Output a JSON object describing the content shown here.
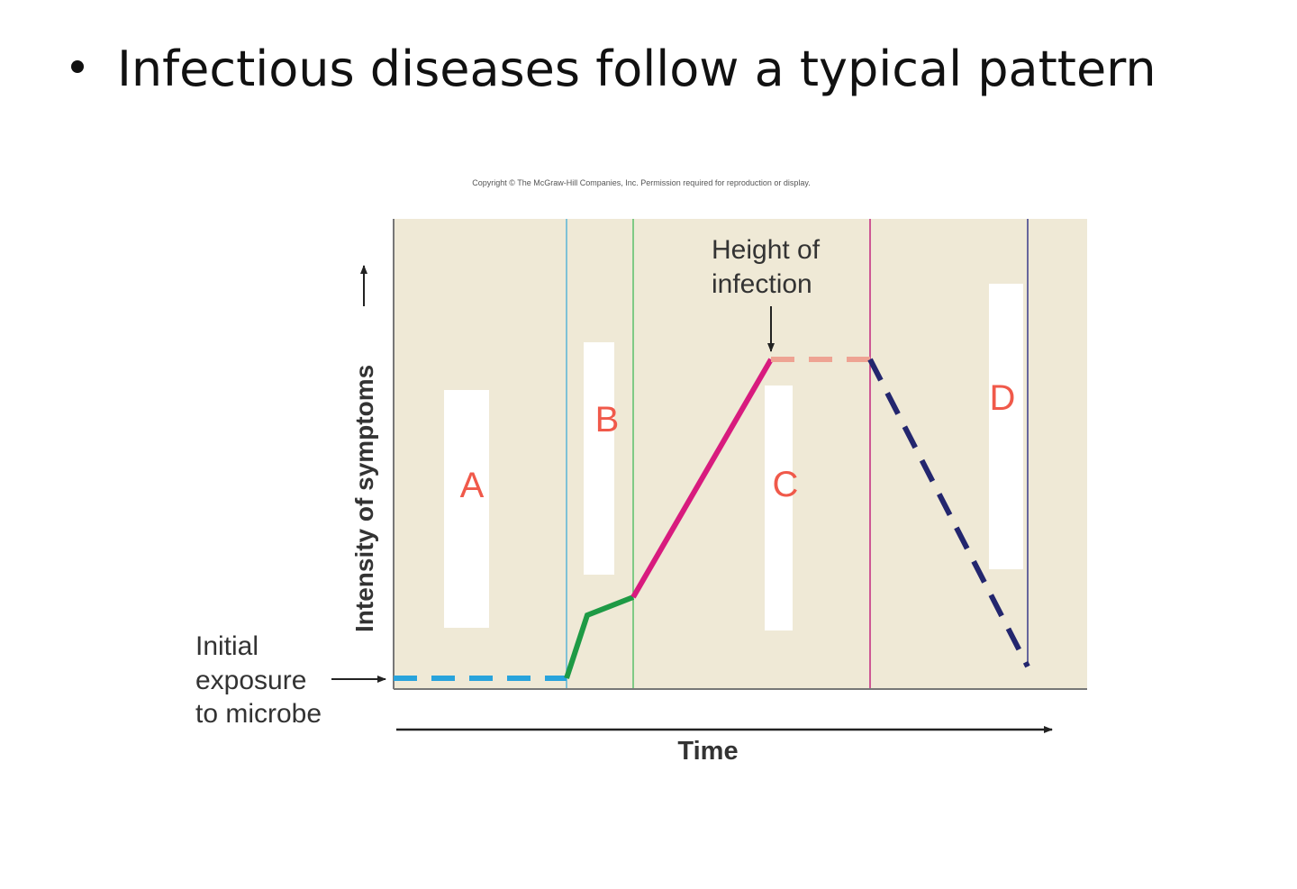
{
  "slide": {
    "bullet": "Infectious diseases follow a typical pattern"
  },
  "figure": {
    "copyright": "Copyright © The McGraw-Hill Companies, Inc. Permission required for reproduction or display.",
    "y_axis_label": "Intensity of symptoms",
    "x_axis_label": "Time",
    "annotations": {
      "initial_exposure": [
        "Initial",
        "exposure",
        "to microbe"
      ],
      "height_of_infection": [
        "Height of",
        "infection"
      ]
    },
    "regions": [
      "A",
      "B",
      "C",
      "D"
    ]
  }
}
